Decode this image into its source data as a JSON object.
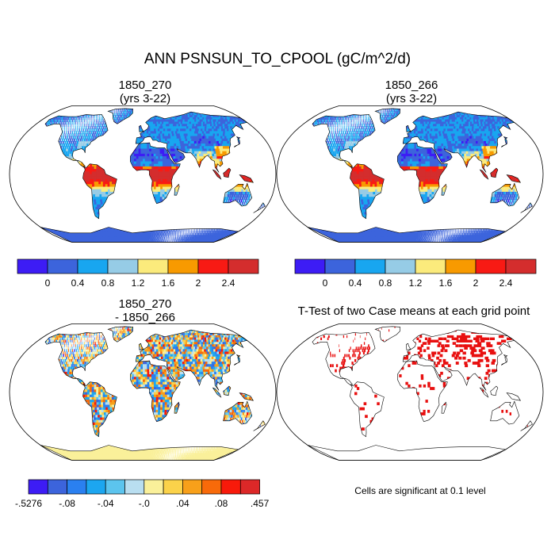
{
  "figure": {
    "title": "ANN PSNSUN_TO_CPOOL (gC/m^2/d)"
  },
  "panels": [
    {
      "id": "case1",
      "title_line1": "1850_270",
      "title_line2": "(yrs 3-22)"
    },
    {
      "id": "case2",
      "title_line1": "1850_266",
      "title_line2": "(yrs 3-22)"
    },
    {
      "id": "diff",
      "title_line1": "1850_270",
      "title_line2": "- 1850_266"
    },
    {
      "id": "ttest",
      "title_line1": "T-Test of two Case means at each grid point",
      "title_line2": ""
    }
  ],
  "colorbars": {
    "main": {
      "colors": [
        "#3d1cf5",
        "#3c64dc",
        "#18a6f0",
        "#96cce6",
        "#fbeb7c",
        "#f89a00",
        "#f81a14",
        "#d42d2d"
      ],
      "labels": [
        "0",
        "0.4",
        "0.8",
        "1.2",
        "1.6",
        "2",
        "2.4"
      ]
    },
    "diff": {
      "colors": [
        "#3d1cf5",
        "#3c64dc",
        "#2a80f0",
        "#1ca6f0",
        "#5cc4ee",
        "#b9def0",
        "#faf09a",
        "#fbd24a",
        "#f8a01a",
        "#f86a0a",
        "#f81a0a",
        "#dc2828"
      ],
      "labels": [
        "-.5276",
        "-.08",
        "-.04",
        "-.0",
        ".04",
        ".08",
        ".457"
      ]
    }
  },
  "significance_note": "Cells are significant at 0.1 level",
  "colors": {
    "ocean": "#ffffff",
    "outline": "#000000",
    "significant": "#e81010",
    "antarctica_case": "#3c64dc",
    "antarctica_diff": "#faf09a"
  }
}
